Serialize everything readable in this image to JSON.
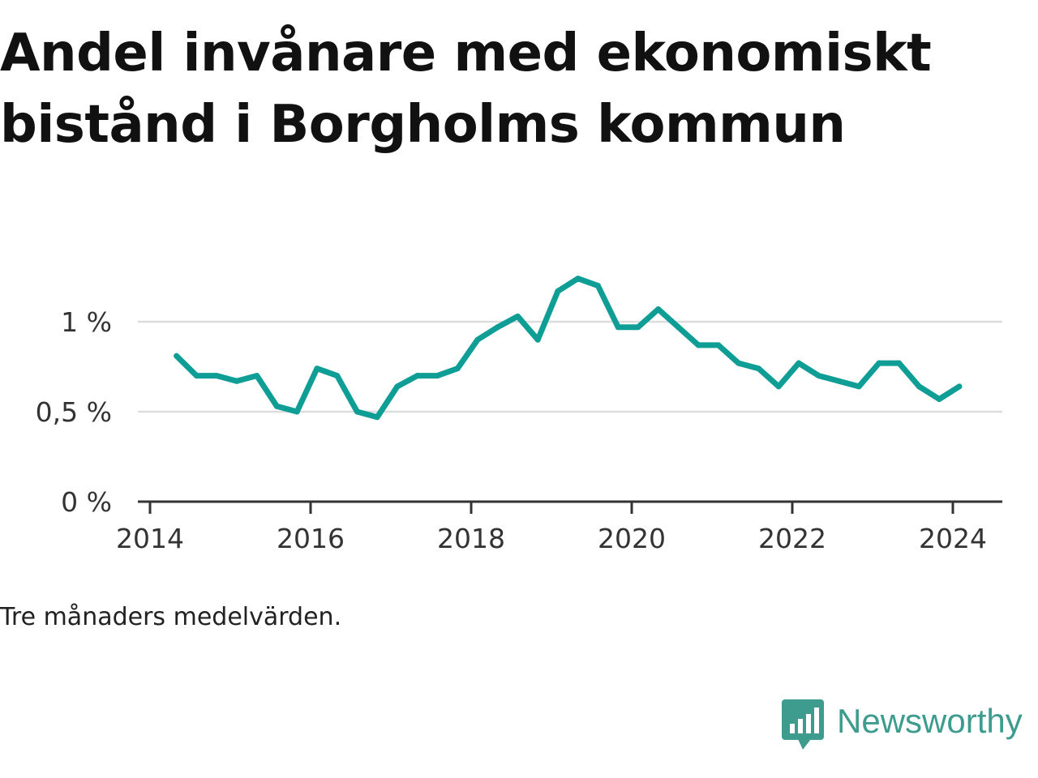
{
  "chart_data": {
    "type": "line",
    "title": "Andel invånare med ekonomiskt bistånd i Borgholms kommun",
    "note": "Tre månaders medelvärden.",
    "x_ticks": [
      "2014",
      "2016",
      "2018",
      "2020",
      "2022",
      "2024"
    ],
    "y_ticks": [
      "0 %",
      "0,5 %",
      "1 %"
    ],
    "ylim": [
      0,
      1.4
    ],
    "grid": true,
    "color": "#0f9e96",
    "series": [
      {
        "x": [
          2014.33,
          2014.58,
          2014.83,
          2015.08,
          2015.33,
          2015.58,
          2015.83,
          2016.08,
          2016.33,
          2016.58,
          2016.83,
          2017.08,
          2017.33,
          2017.58,
          2017.83,
          2018.08,
          2018.33,
          2018.58,
          2018.83,
          2019.08,
          2019.33,
          2019.58,
          2019.83,
          2020.08,
          2020.33,
          2020.58,
          2020.83,
          2021.08,
          2021.33,
          2021.58,
          2021.83,
          2022.08,
          2022.33,
          2022.58,
          2022.83,
          2023.08,
          2023.33,
          2023.58,
          2023.83,
          2024.08
        ],
        "y": [
          0.81,
          0.7,
          0.7,
          0.67,
          0.7,
          0.53,
          0.5,
          0.74,
          0.7,
          0.5,
          0.47,
          0.64,
          0.7,
          0.7,
          0.74,
          0.9,
          0.97,
          1.03,
          0.9,
          1.17,
          1.24,
          1.2,
          0.97,
          0.97,
          1.07,
          0.97,
          0.87,
          0.87,
          0.77,
          0.74,
          0.64,
          0.77,
          0.7,
          0.67,
          0.64,
          0.77,
          0.77,
          0.64,
          0.57,
          0.64
        ]
      }
    ]
  },
  "brand": {
    "name": "Newsworthy",
    "logo_icon": "speech-bubble-bar-chart-icon",
    "color": "#3d9c8e"
  }
}
